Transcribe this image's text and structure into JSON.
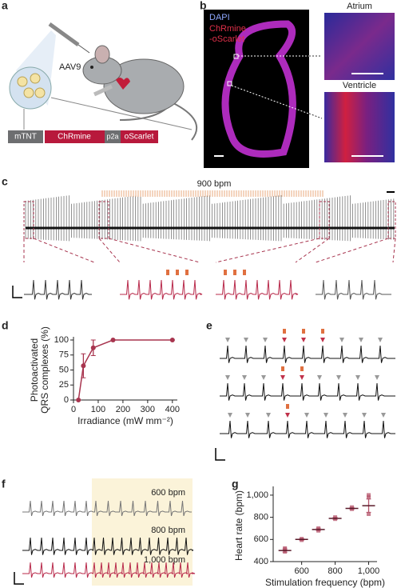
{
  "panels": {
    "a": {
      "letter": "a",
      "vector": "AAV9",
      "construct": [
        "mTNT",
        "ChRmine",
        "p2a",
        "oScarlet"
      ]
    },
    "b": {
      "letter": "b",
      "stain1": "DAPI",
      "stain2": "ChRmine",
      "stain3": "-oScarlet",
      "inset1": "Atrium",
      "inset2": "Ventricle"
    },
    "c": {
      "letter": "c",
      "rate": "900 bpm"
    },
    "e": {
      "letter": "e"
    },
    "f": {
      "letter": "f",
      "rates": [
        "600 bpm",
        "800 bpm",
        "1,000 bpm"
      ]
    }
  },
  "chart_data": [
    {
      "type": "line",
      "letter": "d",
      "x": [
        20,
        40,
        80,
        160,
        400
      ],
      "values": [
        0,
        57,
        87,
        100,
        100
      ],
      "errors": [
        0,
        20,
        13,
        0,
        0
      ],
      "color": "#a8354f",
      "xlim": [
        0,
        420
      ],
      "xticks": [
        0,
        100,
        200,
        300,
        400
      ],
      "ylim": [
        0,
        100
      ],
      "yticks": [
        0,
        25,
        50,
        75,
        100
      ],
      "ylabel": [
        "Photoactivated",
        "QRS complexes (%)"
      ],
      "xlabel": "Irradiance (mW mm⁻²)"
    },
    {
      "type": "scatter",
      "letter": "g",
      "x": [
        500,
        600,
        700,
        800,
        900,
        1000
      ],
      "values": [
        500,
        600,
        690,
        790,
        880,
        905
      ],
      "errors": [
        15,
        8,
        12,
        10,
        10,
        60
      ],
      "points": {
        "x": [
          500,
          500,
          500,
          600,
          600,
          700,
          700,
          800,
          800,
          900,
          900,
          1000,
          1000,
          1000
        ],
        "values": [
          490,
          510,
          520,
          595,
          605,
          680,
          700,
          785,
          800,
          875,
          890,
          830,
          980,
          1000
        ]
      },
      "color": "#b4536a",
      "xlim": [
        430,
        1050
      ],
      "xticks": [
        600,
        800,
        {
          "value": 1000,
          "label": "1,000"
        }
      ],
      "ylim": [
        400,
        1050
      ],
      "yticks": [
        400,
        600,
        800,
        {
          "value": 1000,
          "label": "1,000"
        }
      ],
      "ylabel": "Heart rate (bpm)",
      "xlabel": "Stimulation frequency (bpm)"
    }
  ]
}
